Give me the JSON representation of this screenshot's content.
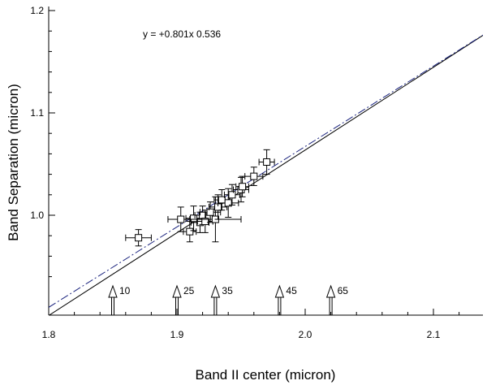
{
  "chart_data": {
    "type": "scatter",
    "title": "",
    "xlabel": "Band II center (micron)",
    "ylabel": "Band Separation (micron)",
    "xlim": [
      1.8,
      2.15
    ],
    "ylim": [
      0.92,
      1.22
    ],
    "x_ticks": [
      1.8,
      1.9,
      2.0,
      2.1
    ],
    "x_tick_labels": [
      "1.8",
      "1.9",
      "2.0",
      "2.1"
    ],
    "y_ticks": [
      1.0,
      1.1,
      1.2
    ],
    "y_tick_labels": [
      "1.0",
      "1.1",
      "1.2"
    ],
    "grid": false,
    "equation_text": "y = +0.801x  0.536",
    "lines": [
      {
        "style": "solid",
        "color": "#000000",
        "x": [
          1.8,
          2.15
        ],
        "y": [
          0.902,
          1.185
        ]
      },
      {
        "style": "dashed",
        "color": "#1a237e",
        "x": [
          1.8,
          2.15
        ],
        "y": [
          0.91,
          1.185
        ]
      }
    ],
    "points": [
      {
        "x": 1.87,
        "y": 0.978,
        "xerr": 0.01,
        "yerr": 0.008
      },
      {
        "x": 1.903,
        "y": 0.996,
        "xerr": 0.01,
        "yerr": 0.012
      },
      {
        "x": 1.91,
        "y": 0.984,
        "xerr": 0.005,
        "yerr": 0.01
      },
      {
        "x": 1.913,
        "y": 0.997,
        "xerr": 0.006,
        "yerr": 0.012
      },
      {
        "x": 1.918,
        "y": 0.993,
        "xerr": 0.007,
        "yerr": 0.01
      },
      {
        "x": 1.92,
        "y": 1.0,
        "xerr": 0.006,
        "yerr": 0.009
      },
      {
        "x": 1.922,
        "y": 0.994,
        "xerr": 0.006,
        "yerr": 0.011
      },
      {
        "x": 1.926,
        "y": 1.003,
        "xerr": 0.008,
        "yerr": 0.01
      },
      {
        "x": 1.93,
        "y": 0.996,
        "xerr": 0.02,
        "yerr": 0.022
      },
      {
        "x": 1.932,
        "y": 1.008,
        "xerr": 0.007,
        "yerr": 0.012
      },
      {
        "x": 1.935,
        "y": 1.015,
        "xerr": 0.006,
        "yerr": 0.01
      },
      {
        "x": 1.94,
        "y": 1.012,
        "xerr": 0.008,
        "yerr": 0.014
      },
      {
        "x": 1.943,
        "y": 1.02,
        "xerr": 0.006,
        "yerr": 0.01
      },
      {
        "x": 1.95,
        "y": 1.025,
        "xerr": 0.006,
        "yerr": 0.012
      },
      {
        "x": 1.951,
        "y": 1.028,
        "xerr": 0.005,
        "yerr": 0.01
      },
      {
        "x": 1.96,
        "y": 1.038,
        "xerr": 0.007,
        "yerr": 0.009
      },
      {
        "x": 1.97,
        "y": 1.052,
        "xerr": 0.006,
        "yerr": 0.012
      }
    ],
    "arrows": [
      {
        "x": 1.85,
        "label": "10"
      },
      {
        "x": 1.9,
        "label": "25"
      },
      {
        "x": 1.93,
        "label": "35"
      },
      {
        "x": 1.98,
        "label": "45"
      },
      {
        "x": 2.02,
        "label": "65"
      }
    ]
  }
}
